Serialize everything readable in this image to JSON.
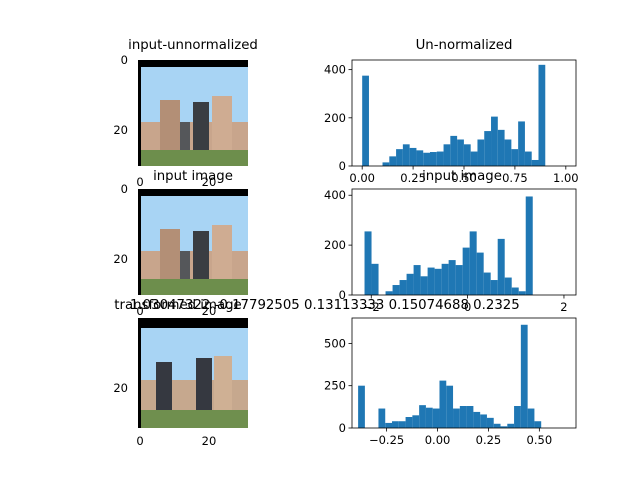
{
  "chart_data": [
    {
      "type": "image",
      "title": "input-unnormalized",
      "x_ticks": [
        "0",
        "20"
      ],
      "y_ticks": [
        "0",
        "20"
      ],
      "image_extent": [
        0,
        32
      ],
      "description_colors": {
        "sky": "#a8d4f4",
        "grass": "#6d8e4c",
        "building": "#c9a58c"
      }
    },
    {
      "type": "histogram",
      "title": "Un-normalized",
      "x_ticks": [
        "0.00",
        "0.25",
        "0.50",
        "0.75",
        "1.00"
      ],
      "x_tick_values": [
        0,
        0.25,
        0.5,
        0.75,
        1.0
      ],
      "y_ticks": [
        "0",
        "200",
        "400"
      ],
      "y_tick_values": [
        0,
        200,
        400
      ],
      "xlim": [
        -0.05,
        1.05
      ],
      "ylim": [
        0,
        440
      ],
      "bin_start": 0.0,
      "bin_width": 0.0333,
      "values": [
        375,
        0,
        0,
        15,
        40,
        70,
        90,
        75,
        65,
        55,
        58,
        60,
        90,
        125,
        110,
        90,
        60,
        110,
        145,
        205,
        150,
        110,
        70,
        185,
        60,
        25,
        420
      ],
      "color": "#1f77b4"
    },
    {
      "type": "image",
      "title": "input image",
      "x_ticks": [
        "0",
        "20"
      ],
      "y_ticks": [
        "0",
        "20"
      ],
      "image_extent": [
        0,
        32
      ]
    },
    {
      "type": "histogram",
      "title": "input image",
      "x_ticks": [
        "−2",
        "0",
        "2"
      ],
      "x_tick_values": [
        -2,
        0,
        2
      ],
      "y_ticks": [
        "0",
        "200",
        "400"
      ],
      "y_tick_values": [
        0,
        200,
        400
      ],
      "xlim": [
        -2.4,
        2.25
      ],
      "ylim": [
        0,
        425
      ],
      "bin_start": -2.14,
      "bin_width": 0.1455,
      "values": [
        255,
        125,
        0,
        15,
        40,
        60,
        85,
        120,
        75,
        110,
        105,
        125,
        140,
        120,
        190,
        255,
        170,
        90,
        60,
        225,
        70,
        30,
        15,
        395
      ],
      "color": "#1f77b4"
    },
    {
      "type": "image",
      "title": "transformed image",
      "x_ticks": [
        "0",
        "20"
      ],
      "y_ticks": [
        "0",
        "20"
      ],
      "image_extent": [
        0,
        32
      ]
    },
    {
      "type": "histogram",
      "title": "",
      "x_ticks": [
        "−0.25",
        "0.00",
        "0.25",
        "0.50"
      ],
      "x_tick_values": [
        -0.25,
        0.0,
        0.25,
        0.5
      ],
      "y_ticks": [
        "0",
        "250",
        "500"
      ],
      "y_tick_values": [
        0,
        250,
        500
      ],
      "xlim": [
        -0.42,
        0.68
      ],
      "ylim": [
        0,
        650
      ],
      "bin_start": -0.39,
      "bin_width": 0.0333,
      "values": [
        250,
        0,
        0,
        115,
        30,
        40,
        40,
        65,
        75,
        135,
        120,
        115,
        280,
        250,
        115,
        130,
        130,
        95,
        80,
        60,
        25,
        10,
        25,
        130,
        610,
        115,
        40
      ],
      "color": "#1f77b4"
    }
  ],
  "overlay_text": "1.03047322 -0.17792505  0.13113333  0.15074688  0.2325"
}
